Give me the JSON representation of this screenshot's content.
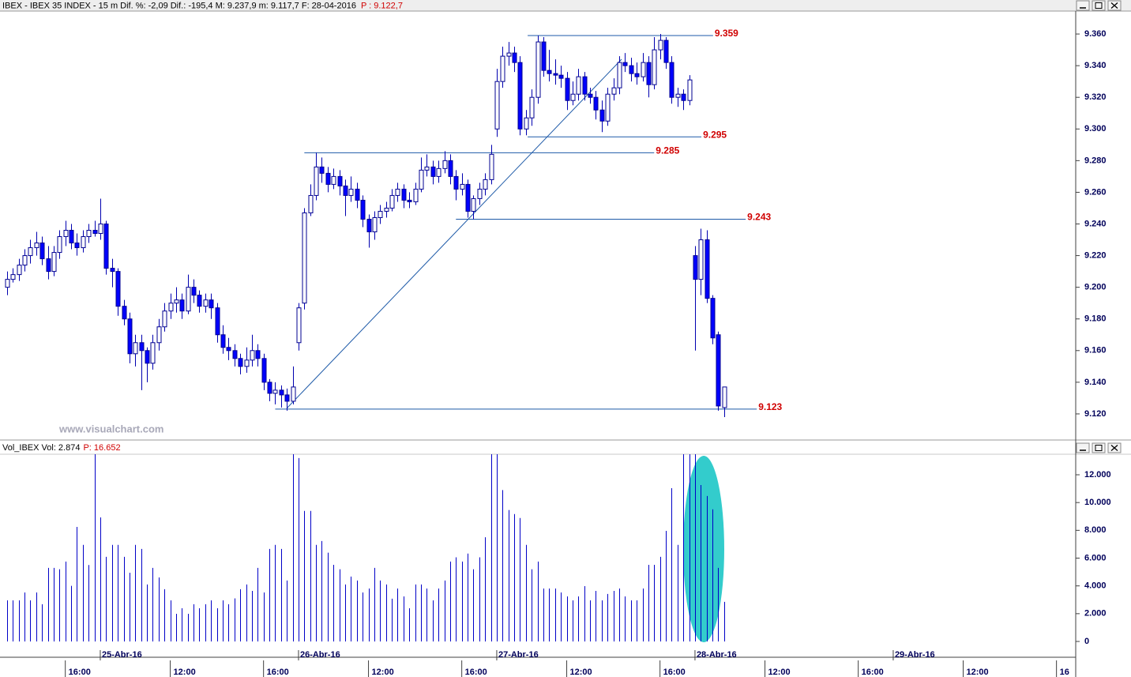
{
  "chart_data": [
    {
      "type": "candlestick",
      "title": "IBEX - IBEX 35 INDEX - 15 m  Dif. %: -2,09  Dif.: -195,4  M: 9.237,9  m: 9.117,7  F: 28-04-2016",
      "price_label": "P : 9.122,7",
      "watermark": "www.visualchart.com",
      "up_color": "#ffffff",
      "down_color": "#0000ff",
      "line_color": "#1e5aa8",
      "ylim": [
        9104.5,
        9374.5
      ],
      "yticks": [
        {
          "value": 9120,
          "label": "9.120"
        },
        {
          "value": 9140,
          "label": "9.140"
        },
        {
          "value": 9160,
          "label": "9.160"
        },
        {
          "value": 9180,
          "label": "9.180"
        },
        {
          "value": 9200,
          "label": "9.200"
        },
        {
          "value": 9220,
          "label": "9.220"
        },
        {
          "value": 9240,
          "label": "9.240"
        },
        {
          "value": 9260,
          "label": "9.260"
        },
        {
          "value": 9280,
          "label": "9.280"
        },
        {
          "value": 9300,
          "label": "9.300"
        },
        {
          "value": 9320,
          "label": "9.320"
        },
        {
          "value": 9340,
          "label": "9.340"
        },
        {
          "value": 9360,
          "label": "9.360"
        }
      ],
      "levels": [
        {
          "value": 9359,
          "label": "9.359"
        },
        {
          "value": 9295,
          "label": "9.295"
        },
        {
          "value": 9285,
          "label": "9.285"
        },
        {
          "value": 9243,
          "label": "9.243"
        },
        {
          "value": 9123,
          "label": "9.123"
        }
      ],
      "open": [
        9200,
        9205,
        9208,
        9214,
        9220,
        9225,
        9228,
        9218,
        9210,
        9222,
        9232,
        9236,
        9228,
        9225,
        9232,
        9236,
        9234,
        9240,
        9212,
        9210,
        9188,
        9180,
        9158,
        9165,
        9160,
        9152,
        9165,
        9175,
        9185,
        9190,
        9192,
        9185,
        9200,
        9195,
        9188,
        9192,
        9187,
        9170,
        9162,
        9160,
        9155,
        9150,
        9154,
        9160,
        9155,
        9140,
        9133,
        9135,
        9132,
        9128,
        9165,
        9190,
        9247,
        9258,
        9276,
        9272,
        9265,
        9270,
        9264,
        9258,
        9262,
        9255,
        9243,
        9235,
        9244,
        9248,
        9250,
        9258,
        9262,
        9255,
        9254,
        9262,
        9274,
        9276,
        9270,
        9275,
        9280,
        9270,
        9262,
        9265,
        9248,
        9256,
        9262,
        9268,
        9300,
        9330,
        9346,
        9348,
        9342,
        9300,
        9307,
        9320,
        9355,
        9337,
        9335,
        9334,
        9332,
        9318,
        9322,
        9333,
        9322,
        9320,
        9312,
        9305,
        9322,
        9326,
        9342,
        9340,
        9335,
        9333,
        9342,
        9328,
        9350,
        9356,
        9342,
        9320,
        9322,
        9318,
        9220,
        9205,
        9230,
        9193,
        9170,
        9124
      ],
      "high": [
        9210,
        9212,
        9218,
        9224,
        9230,
        9235,
        9232,
        9226,
        9226,
        9236,
        9242,
        9240,
        9234,
        9236,
        9240,
        9242,
        9256,
        9242,
        9218,
        9212,
        9192,
        9184,
        9170,
        9170,
        9162,
        9170,
        9180,
        9190,
        9196,
        9200,
        9196,
        9208,
        9205,
        9198,
        9196,
        9196,
        9190,
        9176,
        9168,
        9164,
        9158,
        9162,
        9170,
        9164,
        9158,
        9142,
        9140,
        9138,
        9136,
        9150,
        9190,
        9250,
        9265,
        9285,
        9282,
        9276,
        9275,
        9274,
        9268,
        9270,
        9266,
        9258,
        9246,
        9248,
        9252,
        9254,
        9262,
        9266,
        9265,
        9260,
        9266,
        9282,
        9284,
        9280,
        9280,
        9286,
        9284,
        9274,
        9272,
        9268,
        9258,
        9266,
        9272,
        9290,
        9338,
        9352,
        9355,
        9352,
        9346,
        9312,
        9325,
        9359,
        9358,
        9350,
        9344,
        9340,
        9336,
        9330,
        9338,
        9336,
        9326,
        9324,
        9318,
        9326,
        9332,
        9346,
        9348,
        9345,
        9342,
        9348,
        9346,
        9358,
        9360,
        9358,
        9346,
        9326,
        9325,
        9334,
        9226,
        9237,
        9236,
        9195,
        9172,
        9137
      ],
      "low": [
        9195,
        9203,
        9204,
        9210,
        9215,
        9220,
        9214,
        9205,
        9207,
        9218,
        9226,
        9224,
        9220,
        9222,
        9228,
        9232,
        9230,
        9208,
        9200,
        9182,
        9176,
        9152,
        9150,
        9135,
        9140,
        9148,
        9160,
        9172,
        9180,
        9184,
        9180,
        9183,
        9190,
        9184,
        9184,
        9180,
        9165,
        9158,
        9154,
        9150,
        9145,
        9146,
        9150,
        9150,
        9135,
        9128,
        9126,
        9124,
        9122,
        9126,
        9160,
        9186,
        9245,
        9255,
        9266,
        9260,
        9262,
        9258,
        9245,
        9254,
        9250,
        9238,
        9225,
        9230,
        9240,
        9244,
        9248,
        9254,
        9250,
        9250,
        9252,
        9260,
        9270,
        9265,
        9266,
        9272,
        9265,
        9255,
        9258,
        9244,
        9243,
        9252,
        9258,
        9265,
        9295,
        9326,
        9340,
        9336,
        9296,
        9296,
        9302,
        9316,
        9333,
        9330,
        9328,
        9326,
        9312,
        9315,
        9318,
        9318,
        9316,
        9306,
        9298,
        9302,
        9318,
        9322,
        9336,
        9330,
        9328,
        9330,
        9320,
        9325,
        9344,
        9338,
        9316,
        9314,
        9312,
        9315,
        9160,
        9195,
        9190,
        9164,
        9122,
        9118
      ],
      "close": [
        9205,
        9208,
        9214,
        9220,
        9225,
        9228,
        9218,
        9210,
        9222,
        9232,
        9236,
        9228,
        9225,
        9232,
        9236,
        9234,
        9240,
        9212,
        9210,
        9188,
        9180,
        9158,
        9165,
        9160,
        9152,
        9165,
        9175,
        9185,
        9190,
        9192,
        9185,
        9200,
        9195,
        9188,
        9192,
        9187,
        9170,
        9162,
        9160,
        9155,
        9150,
        9154,
        9160,
        9155,
        9140,
        9133,
        9135,
        9132,
        9128,
        9137,
        9187,
        9247,
        9258,
        9276,
        9272,
        9265,
        9270,
        9264,
        9258,
        9262,
        9255,
        9243,
        9235,
        9244,
        9248,
        9250,
        9258,
        9262,
        9255,
        9254,
        9262,
        9274,
        9276,
        9270,
        9275,
        9280,
        9270,
        9262,
        9265,
        9248,
        9256,
        9262,
        9268,
        9284,
        9330,
        9346,
        9348,
        9342,
        9300,
        9307,
        9320,
        9355,
        9337,
        9335,
        9334,
        9332,
        9318,
        9322,
        9333,
        9322,
        9320,
        9312,
        9305,
        9322,
        9326,
        9342,
        9340,
        9335,
        9333,
        9342,
        9328,
        9350,
        9356,
        9342,
        9320,
        9322,
        9318,
        9331,
        9205,
        9230,
        9193,
        9168,
        9125,
        9137
      ]
    },
    {
      "type": "bar",
      "title": "Vol_IBEX Vol: 2.874",
      "price_label": "P: 16.652",
      "color": "#0000c8",
      "highlight_color": "#33cccc",
      "ylim": [
        -1137,
        13479
      ],
      "yticks": [
        0,
        {
          "value": 2000,
          "label": "2.000"
        },
        {
          "value": 4000,
          "label": "4.000"
        },
        {
          "value": 6000,
          "label": "6.000"
        },
        {
          "value": 8000,
          "label": "8.000"
        },
        {
          "value": 10000,
          "label": "10.000"
        },
        {
          "value": 12000,
          "label": "12.000"
        }
      ],
      "xlim": [
        -1.2,
        183.3
      ],
      "xticks": [
        {
          "value": 10,
          "label": "16:00"
        },
        {
          "value": 28,
          "label": "12:00"
        },
        {
          "value": 44,
          "label": "16:00"
        },
        {
          "value": 62,
          "label": "12:00"
        },
        {
          "value": 78,
          "label": "16:00"
        },
        {
          "value": 96,
          "label": "12:00"
        },
        {
          "value": 112,
          "label": "16:00"
        },
        {
          "value": 130,
          "label": "12:00"
        },
        {
          "value": 146,
          "label": "16:00"
        },
        {
          "value": 164,
          "label": "12:00"
        },
        {
          "value": 180,
          "label": "16"
        }
      ],
      "date_ticks": [
        {
          "value": 16,
          "label": "25-Abr-16"
        },
        {
          "value": 50,
          "label": "26-Abr-16"
        },
        {
          "value": 84,
          "label": "27-Abr-16"
        },
        {
          "value": 118,
          "label": "28-Abr-16"
        },
        {
          "value": 152,
          "label": "29-Abr-16"
        }
      ],
      "values": [
        2960,
        2960,
        2960,
        3530,
        2960,
        3530,
        2680,
        5300,
        5300,
        5200,
        5750,
        4000,
        8250,
        6950,
        5500,
        13500,
        8930,
        6090,
        6950,
        6950,
        6090,
        4950,
        6950,
        6660,
        4100,
        5300,
        4610,
        3760,
        2960,
        1990,
        2390,
        1990,
        2680,
        2390,
        2680,
        2960,
        2390,
        2960,
        2680,
        3100,
        3760,
        4100,
        3640,
        5300,
        3530,
        6660,
        6950,
        6660,
        4390,
        13500,
        13200,
        9400,
        9400,
        6950,
        7230,
        6390,
        5520,
        5200,
        4100,
        4670,
        4390,
        3530,
        3810,
        5300,
        4390,
        4100,
        3080,
        3810,
        3240,
        2390,
        4100,
        4100,
        3810,
        2960,
        3810,
        4390,
        5750,
        6060,
        5750,
        6330,
        5200,
        6060,
        7500,
        13500,
        13500,
        10900,
        9460,
        9170,
        8890,
        6950,
        5200,
        5750,
        3810,
        3810,
        3810,
        3530,
        3240,
        2960,
        3240,
        3980,
        2960,
        3640,
        2960,
        3420,
        3640,
        3810,
        3240,
        2960,
        2960,
        3810,
        5520,
        5520,
        6090,
        7960,
        11030,
        6950,
        13500,
        13500,
        13500,
        11260,
        10470,
        9510,
        5300,
        2850
      ]
    }
  ]
}
